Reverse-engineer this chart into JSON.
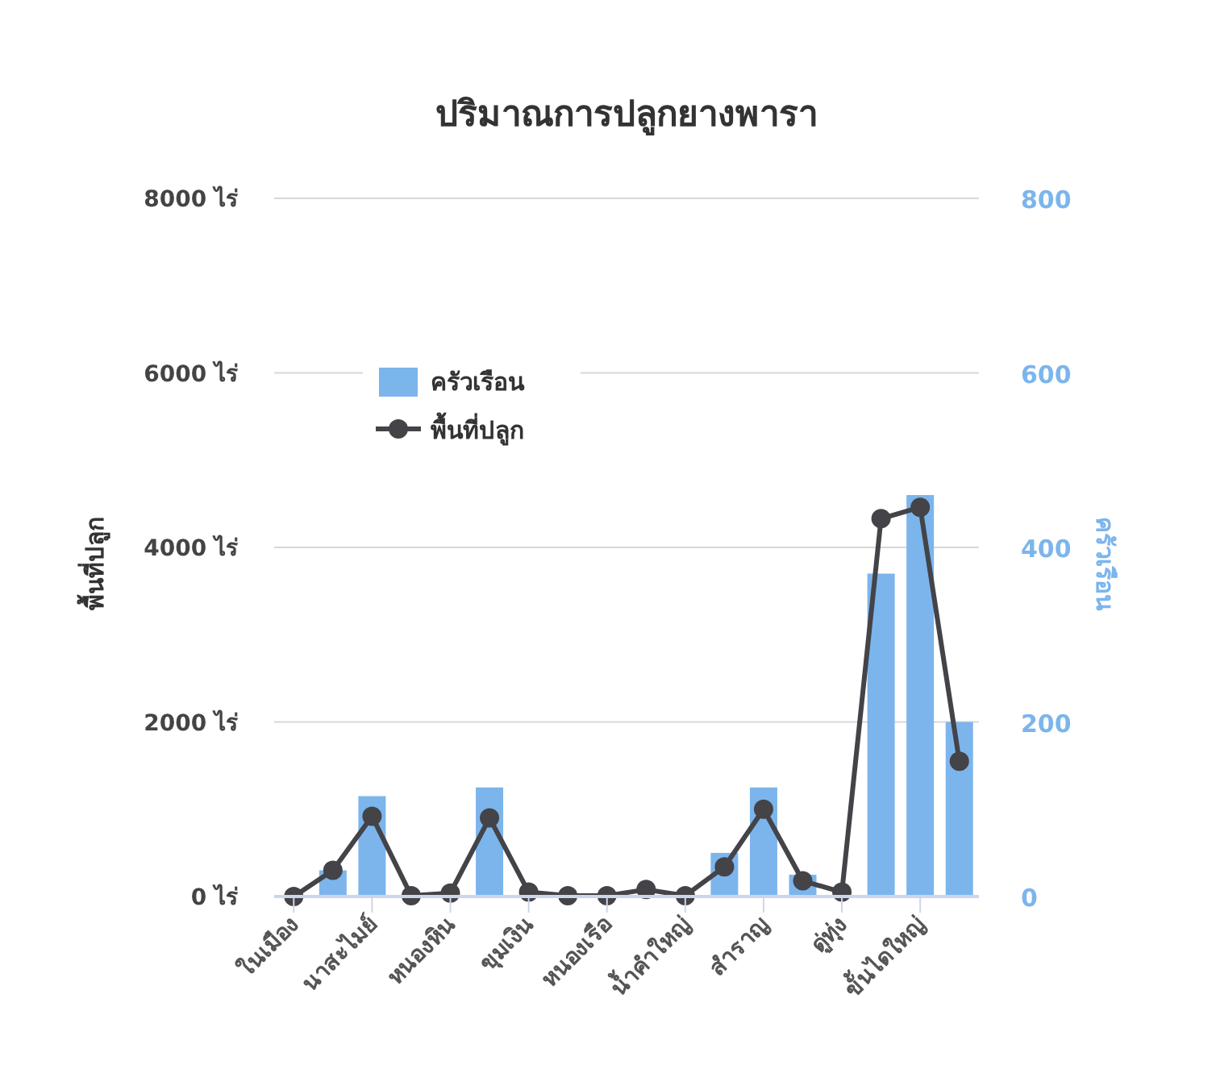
{
  "chart_data": {
    "type": "bar",
    "title": "ปริมาณการปลูกยางพารา",
    "categories": [
      "ในเมือง",
      null,
      "นาสะไมย์",
      null,
      "หนองหิน",
      null,
      "ขุมเงิน",
      null,
      "หนองเรือ",
      null,
      "น้ำคำใหญ่",
      null,
      "สำราญ",
      null,
      "ดู่ทุ่ง",
      null,
      "ขั้นไดใหญ่",
      null
    ],
    "series": [
      {
        "name": "ครัวเรือน",
        "axis": "y2",
        "color": "#7cb5ec",
        "values": [
          0,
          30,
          115,
          0,
          0,
          125,
          0,
          0,
          0,
          0,
          0,
          50,
          125,
          25,
          0,
          370,
          460,
          200
        ]
      },
      {
        "name": "พื้นที่ปลูก",
        "type": "line",
        "color": "#434348",
        "values": [
          0,
          300,
          920,
          10,
          40,
          900,
          50,
          10,
          10,
          80,
          10,
          340,
          1000,
          180,
          50,
          4330,
          4460,
          1550
        ]
      }
    ],
    "ylabel": "พื้นที่ปลูก",
    "y2label": "ครัวเรือน",
    "ylim": [
      0,
      8000
    ],
    "yticks": [
      {
        "value": 0,
        "label": "0 ไร่"
      },
      {
        "value": 2000,
        "label": "2000 ไร่"
      },
      {
        "value": 4000,
        "label": "4000 ไร่"
      },
      {
        "value": 6000,
        "label": "6000 ไร่"
      },
      {
        "value": 8000,
        "label": "8000 ไร่"
      }
    ],
    "y2lim": [
      0,
      800
    ],
    "y2ticks": [
      0,
      200,
      400,
      600,
      800
    ],
    "grid": "y",
    "legend": "top left",
    "marker": "circle",
    "line_style": "solid"
  }
}
